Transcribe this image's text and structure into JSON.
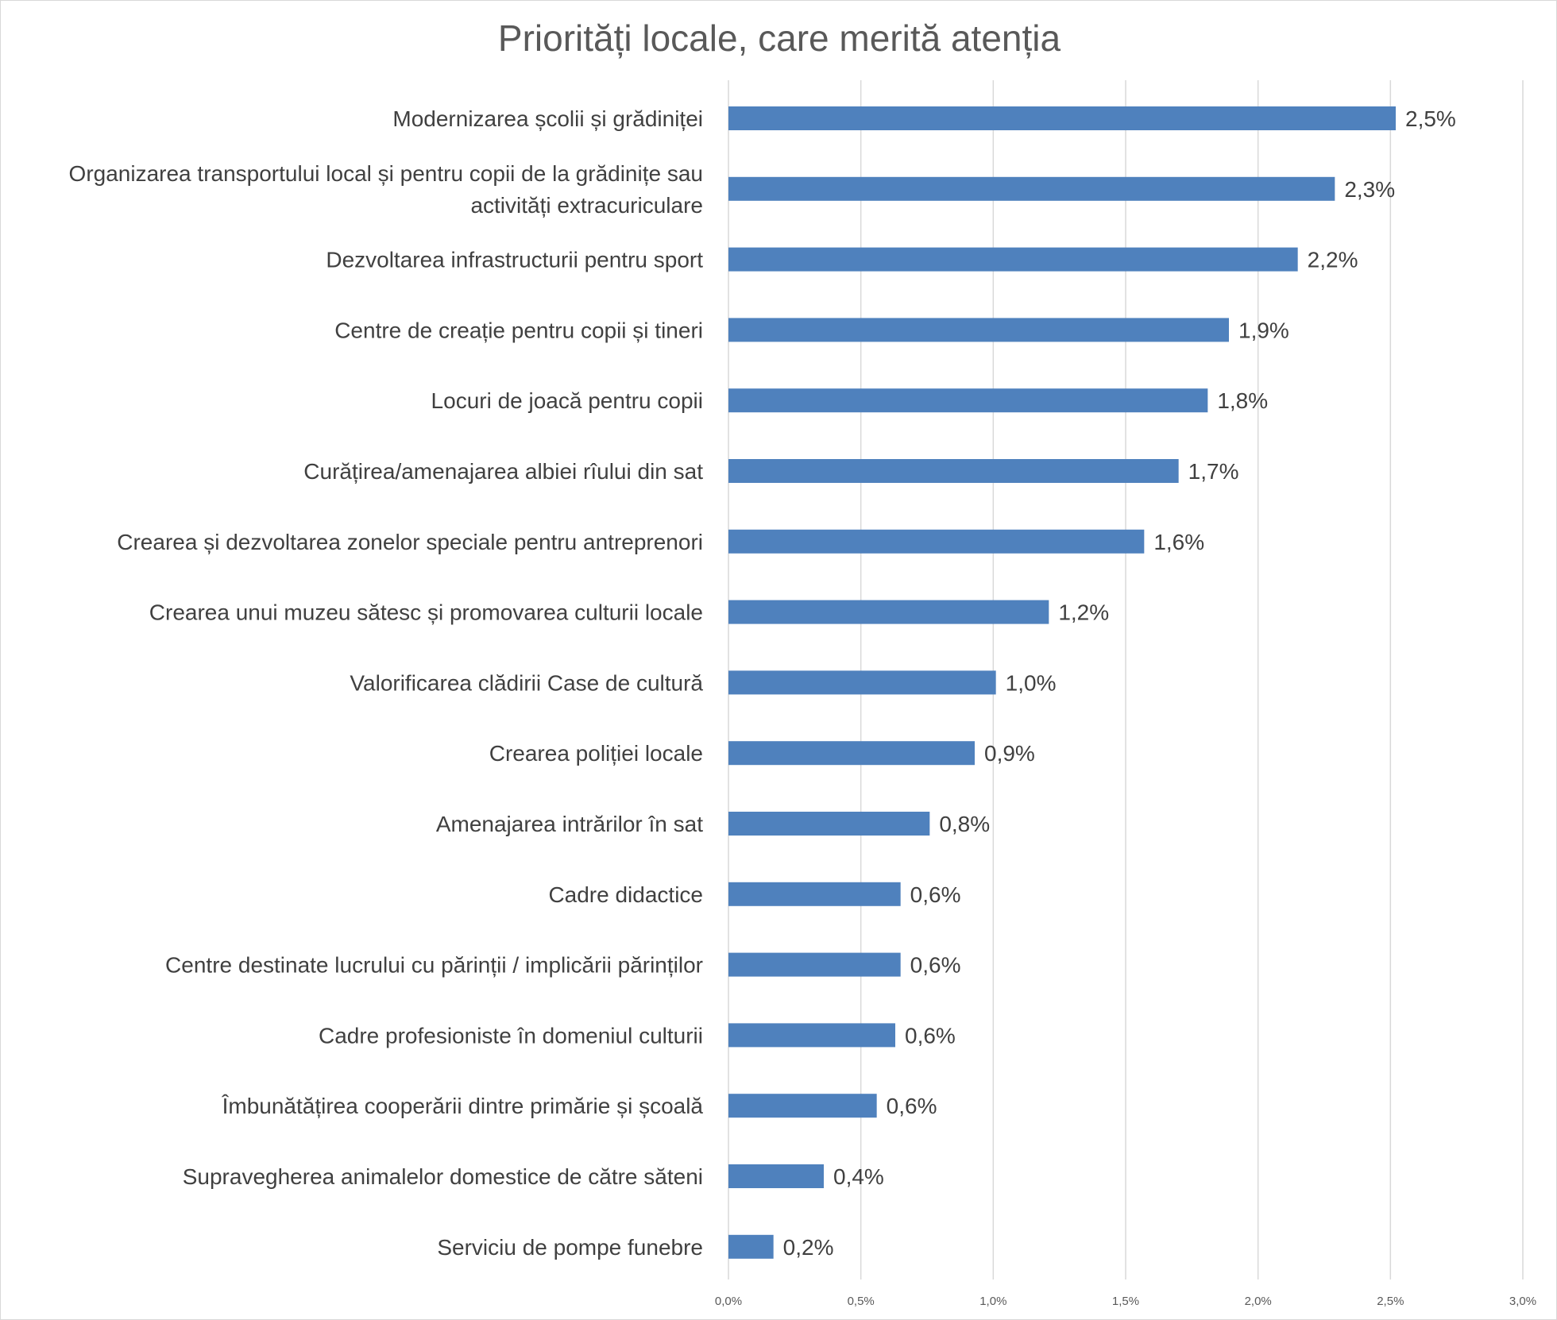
{
  "chart_data": {
    "type": "bar",
    "orientation": "horizontal",
    "title": "Priorități locale, care merită atenția",
    "xlabel": "",
    "ylabel": "",
    "xlim": [
      0,
      3.0
    ],
    "x_ticks": [
      "0,0%",
      "0,5%",
      "1,0%",
      "1,5%",
      "2,0%",
      "2,5%",
      "3,0%"
    ],
    "grid": "vertical",
    "legend": "none",
    "bar_color": "#4f81bd",
    "categories": [
      [
        "Modernizarea școlii și grădiniței"
      ],
      [
        "Organizarea transportului local și pentru copii de la grădinițe sau",
        "activități extracuriculare"
      ],
      [
        "Dezvoltarea infrastructurii pentru sport"
      ],
      [
        "Centre de creație pentru copii și tineri"
      ],
      [
        "Locuri de joacă pentru copii"
      ],
      [
        "Curățirea/amenajarea albiei rîului din sat"
      ],
      [
        "Crearea și dezvoltarea zonelor speciale pentru antreprenori"
      ],
      [
        "Crearea unui muzeu sătesc și promovarea culturii locale"
      ],
      [
        "Valorificarea clădirii Case de cultură"
      ],
      [
        "Crearea poliției locale"
      ],
      [
        "Amenajarea intrărilor în sat"
      ],
      [
        "Cadre didactice"
      ],
      [
        "Centre destinate lucrului cu părinții / implicării părinților"
      ],
      [
        "Cadre profesioniste în domeniul culturii"
      ],
      [
        "Îmbunătățirea cooperării dintre primărie și școală"
      ],
      [
        "Supravegherea animalelor domestice de către săteni"
      ],
      [
        "Serviciu de pompe funebre"
      ]
    ],
    "values": [
      2.52,
      2.29,
      2.15,
      1.89,
      1.81,
      1.7,
      1.57,
      1.21,
      1.01,
      0.93,
      0.76,
      0.65,
      0.65,
      0.63,
      0.56,
      0.36,
      0.17
    ],
    "value_labels": [
      "2,5%",
      "2,3%",
      "2,2%",
      "1,9%",
      "1,8%",
      "1,7%",
      "1,6%",
      "1,2%",
      "1,0%",
      "0,9%",
      "0,8%",
      "0,6%",
      "0,6%",
      "0,6%",
      "0,6%",
      "0,4%",
      "0,2%"
    ]
  }
}
